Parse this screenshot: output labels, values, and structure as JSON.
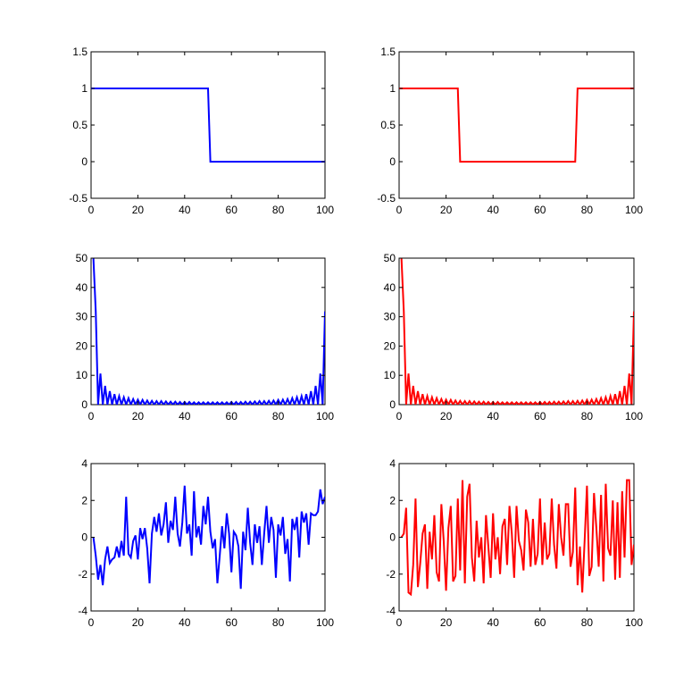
{
  "figure": {
    "background": "#ffffff"
  },
  "chart_data": [
    {
      "type": "line",
      "xlim": [
        0,
        100
      ],
      "ylim": [
        -0.5,
        1.5
      ],
      "xticks": [
        0,
        20,
        40,
        60,
        80,
        100
      ],
      "yticks": [
        -0.5,
        0,
        0.5,
        1,
        1.5
      ],
      "xtick_labels": [
        "0",
        "20",
        "40",
        "60",
        "80",
        "100"
      ],
      "ytick_labels": [
        "-0.5",
        "0",
        "0.5",
        "1",
        "1.5"
      ],
      "grid": false,
      "color": "#0000ff",
      "series": [
        {
          "x": [
            0,
            50,
            51,
            100
          ],
          "y": [
            1,
            1,
            0,
            0
          ]
        }
      ]
    },
    {
      "type": "line",
      "xlim": [
        0,
        100
      ],
      "ylim": [
        -0.5,
        1.5
      ],
      "xticks": [
        0,
        20,
        40,
        60,
        80,
        100
      ],
      "yticks": [
        -0.5,
        0,
        0.5,
        1,
        1.5
      ],
      "xtick_labels": [
        "0",
        "20",
        "40",
        "60",
        "80",
        "100"
      ],
      "ytick_labels": [
        "-0.5",
        "0",
        "0.5",
        "1",
        "1.5"
      ],
      "grid": false,
      "color": "#ff0000",
      "series": [
        {
          "x": [
            0,
            25,
            26,
            75,
            76,
            100
          ],
          "y": [
            1,
            1,
            0,
            0,
            1,
            1
          ]
        }
      ]
    },
    {
      "type": "line",
      "xlim": [
        0,
        100
      ],
      "ylim": [
        0,
        50
      ],
      "xticks": [
        0,
        20,
        40,
        60,
        80,
        100
      ],
      "yticks": [
        0,
        10,
        20,
        30,
        40,
        50
      ],
      "xtick_labels": [
        "0",
        "20",
        "40",
        "60",
        "80",
        "100"
      ],
      "ytick_labels": [
        "0",
        "10",
        "20",
        "30",
        "40",
        "50"
      ],
      "grid": false,
      "color": "#0000ff",
      "series": [
        {
          "x": [
            1,
            2,
            3,
            4,
            5,
            6,
            7,
            8,
            9,
            10,
            11,
            12,
            13,
            14,
            15,
            16,
            17,
            18,
            19,
            20,
            21,
            22,
            23,
            24,
            25,
            26,
            27,
            28,
            29,
            30,
            31,
            32,
            33,
            34,
            35,
            36,
            37,
            38,
            39,
            40,
            41,
            42,
            43,
            44,
            45,
            46,
            47,
            48,
            49,
            50,
            51,
            52,
            53,
            54,
            55,
            56,
            57,
            58,
            59,
            60,
            61,
            62,
            63,
            64,
            65,
            66,
            67,
            68,
            69,
            70,
            71,
            72,
            73,
            74,
            75,
            76,
            77,
            78,
            79,
            80,
            81,
            82,
            83,
            84,
            85,
            86,
            87,
            88,
            89,
            90,
            91,
            92,
            93,
            94,
            95,
            96,
            97,
            98,
            99,
            100
          ],
          "y": [
            50,
            31.8,
            0,
            10.6,
            0,
            6.4,
            0,
            4.6,
            0,
            3.6,
            0,
            2.9,
            0,
            2.5,
            0,
            2.2,
            0,
            1.9,
            0,
            1.7,
            0,
            1.6,
            0,
            1.4,
            0,
            1.3,
            0,
            1.2,
            0,
            1.2,
            0,
            1.1,
            0,
            1,
            0,
            1,
            0,
            0.9,
            0,
            0.9,
            0,
            0.9,
            0,
            0.8,
            0,
            0.8,
            0,
            0.8,
            0,
            0.8,
            0,
            0.8,
            0,
            0.8,
            0,
            0.8,
            0,
            0.8,
            0,
            0.9,
            0,
            0.9,
            0,
            0.9,
            0,
            1,
            0,
            1,
            0,
            1.1,
            0,
            1.2,
            0,
            1.2,
            0,
            1.3,
            0,
            1.4,
            0,
            1.6,
            0,
            1.7,
            0,
            1.9,
            0,
            2.2,
            0,
            2.5,
            0,
            2.9,
            0,
            3.6,
            0,
            4.6,
            0,
            6.4,
            0,
            10.6,
            0,
            31.8
          ]
        }
      ]
    },
    {
      "type": "line",
      "xlim": [
        0,
        100
      ],
      "ylim": [
        0,
        50
      ],
      "xticks": [
        0,
        20,
        40,
        60,
        80,
        100
      ],
      "yticks": [
        0,
        10,
        20,
        30,
        40,
        50
      ],
      "xtick_labels": [
        "0",
        "20",
        "40",
        "60",
        "80",
        "100"
      ],
      "ytick_labels": [
        "0",
        "10",
        "20",
        "30",
        "40",
        "50"
      ],
      "grid": false,
      "color": "#ff0000",
      "series": [
        {
          "x": [
            1,
            2,
            3,
            4,
            5,
            6,
            7,
            8,
            9,
            10,
            11,
            12,
            13,
            14,
            15,
            16,
            17,
            18,
            19,
            20,
            21,
            22,
            23,
            24,
            25,
            26,
            27,
            28,
            29,
            30,
            31,
            32,
            33,
            34,
            35,
            36,
            37,
            38,
            39,
            40,
            41,
            42,
            43,
            44,
            45,
            46,
            47,
            48,
            49,
            50,
            51,
            52,
            53,
            54,
            55,
            56,
            57,
            58,
            59,
            60,
            61,
            62,
            63,
            64,
            65,
            66,
            67,
            68,
            69,
            70,
            71,
            72,
            73,
            74,
            75,
            76,
            77,
            78,
            79,
            80,
            81,
            82,
            83,
            84,
            85,
            86,
            87,
            88,
            89,
            90,
            91,
            92,
            93,
            94,
            95,
            96,
            97,
            98,
            99,
            100
          ],
          "y": [
            50,
            31.8,
            0,
            10.6,
            0,
            6.4,
            0,
            4.6,
            0,
            3.6,
            0,
            2.9,
            0,
            2.5,
            0,
            2.2,
            0,
            1.9,
            0,
            1.7,
            0,
            1.6,
            0,
            1.4,
            0,
            1.3,
            0,
            1.2,
            0,
            1.2,
            0,
            1.1,
            0,
            1,
            0,
            1,
            0,
            0.9,
            0,
            0.9,
            0,
            0.9,
            0,
            0.8,
            0,
            0.8,
            0,
            0.8,
            0,
            0.8,
            0,
            0.8,
            0,
            0.8,
            0,
            0.8,
            0,
            0.8,
            0,
            0.9,
            0,
            0.9,
            0,
            0.9,
            0,
            1,
            0,
            1,
            0,
            1.1,
            0,
            1.2,
            0,
            1.2,
            0,
            1.3,
            0,
            1.4,
            0,
            1.6,
            0,
            1.7,
            0,
            1.9,
            0,
            2.2,
            0,
            2.5,
            0,
            2.9,
            0,
            3.6,
            0,
            4.6,
            0,
            6.4,
            0,
            10.6,
            0,
            31.8
          ]
        }
      ]
    },
    {
      "type": "line",
      "xlim": [
        0,
        100
      ],
      "ylim": [
        -4,
        4
      ],
      "xticks": [
        0,
        20,
        40,
        60,
        80,
        100
      ],
      "yticks": [
        -4,
        -2,
        0,
        2,
        4
      ],
      "xtick_labels": [
        "0",
        "20",
        "40",
        "60",
        "80",
        "100"
      ],
      "ytick_labels": [
        "-4",
        "-2",
        "0",
        "2",
        "4"
      ],
      "grid": false,
      "color": "#0000ff",
      "series": [
        {
          "x": [
            1,
            2,
            3,
            4,
            5,
            6,
            7,
            8,
            9,
            10,
            11,
            12,
            13,
            14,
            15,
            16,
            17,
            18,
            19,
            20,
            21,
            22,
            23,
            24,
            25,
            26,
            27,
            28,
            29,
            30,
            31,
            32,
            33,
            34,
            35,
            36,
            37,
            38,
            39,
            40,
            41,
            42,
            43,
            44,
            45,
            46,
            47,
            48,
            49,
            50,
            51,
            52,
            53,
            54,
            55,
            56,
            57,
            58,
            59,
            60,
            61,
            62,
            63,
            64,
            65,
            66,
            67,
            68,
            69,
            70,
            71,
            72,
            73,
            74,
            75,
            76,
            77,
            78,
            79,
            80,
            81,
            82,
            83,
            84,
            85,
            86,
            87,
            88,
            89,
            90,
            91,
            92,
            93,
            94,
            95,
            96,
            97,
            98,
            99,
            100
          ],
          "y": [
            0,
            -1,
            -2.3,
            -1.5,
            -2.6,
            -1.2,
            -0.5,
            -1.4,
            -1.2,
            -1.1,
            -0.5,
            -1.1,
            -0.2,
            -1,
            2.2,
            -0.9,
            -1.1,
            -0.2,
            0.1,
            -1.2,
            0.5,
            -0.1,
            0.5,
            -0.6,
            -2.5,
            0.2,
            1.1,
            0.3,
            1.3,
            0.1,
            0.7,
            1.9,
            -0.3,
            0.9,
            0.4,
            2.2,
            0.2,
            -0.5,
            0.8,
            2.8,
            0.2,
            0.7,
            -1,
            2.5,
            0,
            0.6,
            -0.4,
            1.7,
            0.7,
            2.2,
            0.3,
            -0.6,
            -0.1,
            -2.5,
            -1,
            0.6,
            -0.6,
            1.3,
            0.2,
            -1.9,
            0.3,
            0.1,
            -0.5,
            -2.8,
            0.3,
            -0.7,
            1.6,
            -0.3,
            -1.5,
            0.7,
            -0.3,
            0.6,
            -1.5,
            0.2,
            1.7,
            -0.3,
            1.1,
            0.4,
            -2.2,
            0.7,
            0.1,
            1.1,
            -0.9,
            -0.1,
            -2.4,
            1,
            0.4,
            1.1,
            -1.1,
            1.4,
            0.8,
            1.3,
            -0.4,
            1.3,
            1.2,
            1.2,
            1.4,
            2.6,
            1.8,
            2.2
          ]
        }
      ]
    },
    {
      "type": "line",
      "xlim": [
        0,
        100
      ],
      "ylim": [
        -4,
        4
      ],
      "xticks": [
        0,
        20,
        40,
        60,
        80,
        100
      ],
      "yticks": [
        -4,
        -2,
        0,
        2,
        4
      ],
      "xtick_labels": [
        "0",
        "20",
        "40",
        "60",
        "80",
        "100"
      ],
      "ytick_labels": [
        "-4",
        "-2",
        "0",
        "2",
        "4"
      ],
      "grid": false,
      "color": "#ff0000",
      "series": [
        {
          "x": [
            1,
            2,
            3,
            4,
            5,
            6,
            7,
            8,
            9,
            10,
            11,
            12,
            13,
            14,
            15,
            16,
            17,
            18,
            19,
            20,
            21,
            22,
            23,
            24,
            25,
            26,
            27,
            28,
            29,
            30,
            31,
            32,
            33,
            34,
            35,
            36,
            37,
            38,
            39,
            40,
            41,
            42,
            43,
            44,
            45,
            46,
            47,
            48,
            49,
            50,
            51,
            52,
            53,
            54,
            55,
            56,
            57,
            58,
            59,
            60,
            61,
            62,
            63,
            64,
            65,
            66,
            67,
            68,
            69,
            70,
            71,
            72,
            73,
            74,
            75,
            76,
            77,
            78,
            79,
            80,
            81,
            82,
            83,
            84,
            85,
            86,
            87,
            88,
            89,
            90,
            91,
            92,
            93,
            94,
            95,
            96,
            97,
            98,
            99,
            100
          ],
          "y": [
            0,
            0.2,
            1.6,
            -3,
            -3.1,
            -1.5,
            2.1,
            -2.7,
            -1.4,
            0.2,
            0.7,
            -2.8,
            0.3,
            -1.2,
            1.2,
            -1.9,
            -2.4,
            1.8,
            -0.2,
            -2.9,
            0.5,
            1.7,
            -2.4,
            -2.1,
            2.1,
            -1.8,
            3.1,
            -2.5,
            2.2,
            2.9,
            -1.1,
            -2.4,
            0.9,
            -1.1,
            0,
            -2.5,
            1.2,
            -0.5,
            -2.2,
            1.3,
            -1.2,
            0,
            -2,
            0.6,
            1,
            -1.5,
            1.7,
            0.2,
            -2.2,
            1.7,
            -0.2,
            -0.7,
            -1.8,
            1.5,
            0.8,
            -1.6,
            1,
            -1.5,
            -0.9,
            2.1,
            -1.5,
            0.8,
            -1.2,
            -0.9,
            2.1,
            -0.4,
            -1.7,
            1.8,
            0,
            -1,
            1.8,
            1.8,
            -1.6,
            -0.8,
            2.7,
            -2.6,
            -0.5,
            -3,
            -0.2,
            2.8,
            -2.1,
            -1.6,
            2.4,
            0.5,
            -1.6,
            2.3,
            -2.4,
            2.9,
            -0.6,
            -1,
            2,
            -2.3,
            1.9,
            -2.2,
            2.5,
            -1.1,
            3.1,
            3.1,
            -1.5,
            -0.4
          ]
        }
      ]
    }
  ]
}
